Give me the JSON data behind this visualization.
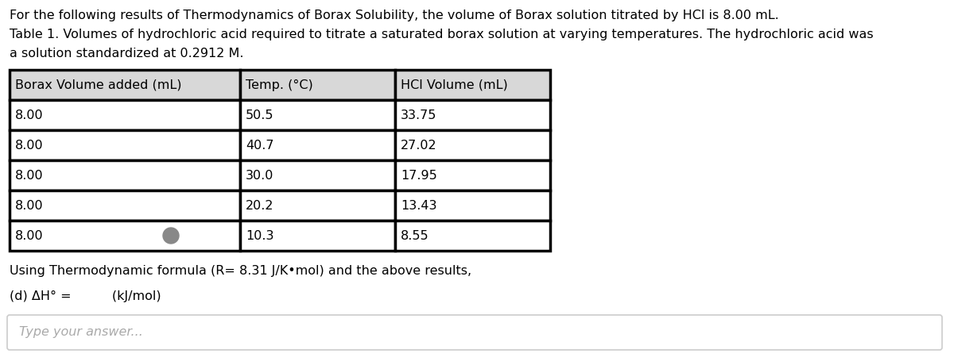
{
  "title_line1": "For the following results of Thermodynamics of Borax Solubility, the volume of Borax solution titrated by HCl is 8.00 mL.",
  "title_line2": "Table 1. Volumes of hydrochloric acid required to titrate a saturated borax solution at varying temperatures. The hydrochloric acid was",
  "title_line3": "a solution standardized at 0.2912 M.",
  "col_headers": [
    "Borax Volume added (mL)",
    "Temp. (°C)",
    "HCl Volume (mL)"
  ],
  "rows": [
    [
      "8.00",
      "50.5",
      "33.75"
    ],
    [
      "8.00",
      "40.7",
      "27.02"
    ],
    [
      "8.00",
      "30.0",
      "17.95"
    ],
    [
      "8.00",
      "20.2",
      "13.43"
    ],
    [
      "8.00",
      "10.3",
      "8.55"
    ]
  ],
  "formula_line": "Using Thermodynamic formula (R= 8.31 J/K•mol) and the above results,",
  "question_line": "(d) ΔH° =          (kJ/mol)",
  "answer_placeholder": "Type your answer...",
  "bg_color": "#ffffff",
  "table_bg": "#ffffff",
  "header_bg": "#d8d8d8",
  "border_color": "#000000",
  "text_color": "#000000",
  "answer_box_bg": "#ffffff",
  "answer_box_border": "#cccccc",
  "font_size": 11.5,
  "circle_color": "#888888"
}
